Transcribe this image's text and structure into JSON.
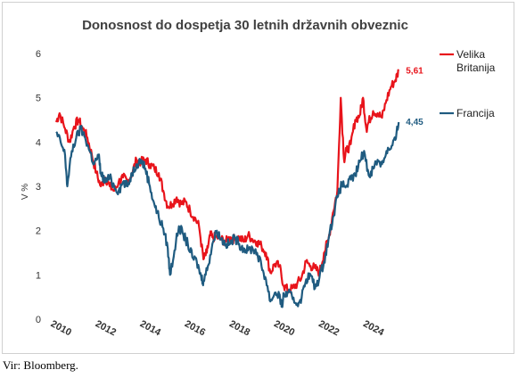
{
  "chart_data": {
    "type": "line",
    "title": "Donosnost do dospetja 30 letnih državnih obveznic",
    "ylabel": "V %",
    "xlabel": "",
    "ylim": [
      0,
      6
    ],
    "xlim": [
      2010,
      2025.5
    ],
    "yticks": [
      0,
      1,
      2,
      3,
      4,
      5,
      6
    ],
    "xticks": [
      "2010",
      "2012",
      "2014",
      "2016",
      "2018",
      "2020",
      "2022",
      "2024"
    ],
    "grid": false,
    "legend_position": "right",
    "series": [
      {
        "name": "Velika Britanija",
        "legend_lines": [
          "Velika",
          "Britanija"
        ],
        "color": "#e8141b",
        "end_label": "5,61",
        "points": [
          [
            2010.0,
            4.45
          ],
          [
            2010.15,
            4.65
          ],
          [
            2010.4,
            4.3
          ],
          [
            2010.6,
            4.0
          ],
          [
            2010.8,
            4.35
          ],
          [
            2011.0,
            4.5
          ],
          [
            2011.2,
            4.3
          ],
          [
            2011.4,
            4.1
          ],
          [
            2011.6,
            3.7
          ],
          [
            2011.8,
            3.3
          ],
          [
            2012.0,
            3.0
          ],
          [
            2012.2,
            3.2
          ],
          [
            2012.4,
            3.0
          ],
          [
            2012.6,
            2.9
          ],
          [
            2012.8,
            3.1
          ],
          [
            2013.0,
            3.2
          ],
          [
            2013.2,
            3.1
          ],
          [
            2013.4,
            3.3
          ],
          [
            2013.6,
            3.6
          ],
          [
            2013.8,
            3.55
          ],
          [
            2014.0,
            3.6
          ],
          [
            2014.2,
            3.5
          ],
          [
            2014.4,
            3.4
          ],
          [
            2014.6,
            3.3
          ],
          [
            2014.8,
            2.9
          ],
          [
            2015.0,
            2.55
          ],
          [
            2015.2,
            2.6
          ],
          [
            2015.4,
            2.75
          ],
          [
            2015.6,
            2.6
          ],
          [
            2015.8,
            2.65
          ],
          [
            2016.0,
            2.45
          ],
          [
            2016.2,
            2.3
          ],
          [
            2016.4,
            2.1
          ],
          [
            2016.6,
            1.35
          ],
          [
            2016.75,
            1.5
          ],
          [
            2016.9,
            1.9
          ],
          [
            2017.0,
            1.85
          ],
          [
            2017.2,
            1.85
          ],
          [
            2017.4,
            1.8
          ],
          [
            2017.6,
            1.75
          ],
          [
            2017.8,
            1.85
          ],
          [
            2018.0,
            1.8
          ],
          [
            2018.2,
            1.85
          ],
          [
            2018.4,
            1.75
          ],
          [
            2018.6,
            1.9
          ],
          [
            2018.8,
            1.8
          ],
          [
            2019.0,
            1.75
          ],
          [
            2019.2,
            1.65
          ],
          [
            2019.4,
            1.5
          ],
          [
            2019.6,
            1.05
          ],
          [
            2019.8,
            1.25
          ],
          [
            2020.0,
            1.2
          ],
          [
            2020.2,
            0.75
          ],
          [
            2020.4,
            0.65
          ],
          [
            2020.6,
            0.7
          ],
          [
            2020.8,
            0.8
          ],
          [
            2021.0,
            0.95
          ],
          [
            2021.2,
            1.3
          ],
          [
            2021.4,
            1.2
          ],
          [
            2021.6,
            1.15
          ],
          [
            2021.8,
            1.05
          ],
          [
            2022.0,
            1.5
          ],
          [
            2022.2,
            1.8
          ],
          [
            2022.4,
            2.4
          ],
          [
            2022.6,
            2.9
          ],
          [
            2022.75,
            5.0
          ],
          [
            2022.9,
            3.6
          ],
          [
            2023.0,
            3.8
          ],
          [
            2023.2,
            3.95
          ],
          [
            2023.4,
            4.5
          ],
          [
            2023.6,
            4.6
          ],
          [
            2023.75,
            5.0
          ],
          [
            2023.9,
            4.3
          ],
          [
            2024.0,
            4.45
          ],
          [
            2024.2,
            4.7
          ],
          [
            2024.4,
            4.65
          ],
          [
            2024.6,
            4.55
          ],
          [
            2024.8,
            4.95
          ],
          [
            2025.0,
            5.25
          ],
          [
            2025.2,
            5.4
          ],
          [
            2025.35,
            5.61
          ]
        ]
      },
      {
        "name": "Francija",
        "legend_lines": [
          "Francija"
        ],
        "color": "#1f5b80",
        "end_label": "4,45",
        "points": [
          [
            2010.0,
            4.2
          ],
          [
            2010.2,
            4.0
          ],
          [
            2010.4,
            3.7
          ],
          [
            2010.5,
            3.0
          ],
          [
            2010.7,
            3.8
          ],
          [
            2010.9,
            4.1
          ],
          [
            2011.1,
            4.3
          ],
          [
            2011.3,
            4.1
          ],
          [
            2011.5,
            3.8
          ],
          [
            2011.7,
            3.5
          ],
          [
            2011.9,
            3.7
          ],
          [
            2012.0,
            3.3
          ],
          [
            2012.2,
            3.1
          ],
          [
            2012.4,
            3.2
          ],
          [
            2012.6,
            3.0
          ],
          [
            2012.8,
            2.9
          ],
          [
            2013.0,
            3.1
          ],
          [
            2013.2,
            3.0
          ],
          [
            2013.4,
            3.3
          ],
          [
            2013.6,
            3.5
          ],
          [
            2013.8,
            3.6
          ],
          [
            2014.0,
            3.4
          ],
          [
            2014.2,
            3.0
          ],
          [
            2014.4,
            2.6
          ],
          [
            2014.6,
            2.3
          ],
          [
            2014.8,
            2.05
          ],
          [
            2015.0,
            1.6
          ],
          [
            2015.1,
            1.0
          ],
          [
            2015.3,
            1.55
          ],
          [
            2015.5,
            2.1
          ],
          [
            2015.7,
            1.9
          ],
          [
            2015.9,
            1.7
          ],
          [
            2016.1,
            1.4
          ],
          [
            2016.3,
            1.3
          ],
          [
            2016.5,
            0.95
          ],
          [
            2016.6,
            0.85
          ],
          [
            2016.8,
            1.2
          ],
          [
            2017.0,
            1.7
          ],
          [
            2017.2,
            2.0
          ],
          [
            2017.4,
            1.8
          ],
          [
            2017.6,
            1.7
          ],
          [
            2017.8,
            1.7
          ],
          [
            2018.0,
            1.85
          ],
          [
            2018.2,
            1.7
          ],
          [
            2018.4,
            1.6
          ],
          [
            2018.6,
            1.55
          ],
          [
            2018.8,
            1.6
          ],
          [
            2019.0,
            1.5
          ],
          [
            2019.2,
            1.2
          ],
          [
            2019.4,
            0.9
          ],
          [
            2019.6,
            0.4
          ],
          [
            2019.8,
            0.6
          ],
          [
            2020.0,
            0.55
          ],
          [
            2020.1,
            0.28
          ],
          [
            2020.2,
            0.55
          ],
          [
            2020.4,
            0.6
          ],
          [
            2020.6,
            0.45
          ],
          [
            2020.8,
            0.35
          ],
          [
            2021.0,
            0.5
          ],
          [
            2021.2,
            0.9
          ],
          [
            2021.4,
            1.0
          ],
          [
            2021.6,
            0.7
          ],
          [
            2021.8,
            0.95
          ],
          [
            2022.0,
            1.3
          ],
          [
            2022.2,
            1.8
          ],
          [
            2022.4,
            2.3
          ],
          [
            2022.6,
            2.75
          ],
          [
            2022.8,
            3.05
          ],
          [
            2023.0,
            3.0
          ],
          [
            2023.2,
            3.15
          ],
          [
            2023.4,
            3.25
          ],
          [
            2023.6,
            3.55
          ],
          [
            2023.8,
            3.8
          ],
          [
            2024.0,
            3.25
          ],
          [
            2024.2,
            3.4
          ],
          [
            2024.4,
            3.6
          ],
          [
            2024.6,
            3.5
          ],
          [
            2024.8,
            3.8
          ],
          [
            2025.0,
            3.85
          ],
          [
            2025.2,
            4.05
          ],
          [
            2025.35,
            4.45
          ]
        ]
      }
    ]
  },
  "source_note": "Vir: Bloomberg."
}
